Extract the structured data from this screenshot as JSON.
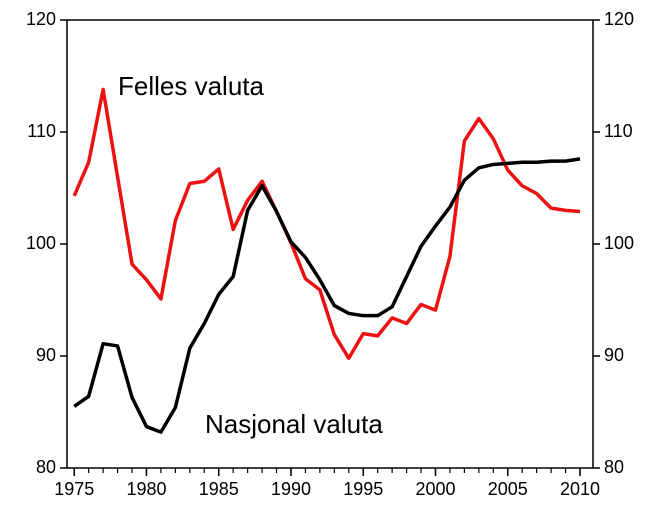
{
  "chart_data": {
    "type": "line",
    "x": [
      1975,
      1976,
      1977,
      1978,
      1979,
      1980,
      1981,
      1982,
      1983,
      1984,
      1985,
      1986,
      1987,
      1988,
      1989,
      1990,
      1991,
      1992,
      1993,
      1994,
      1995,
      1996,
      1997,
      1998,
      1999,
      2000,
      2001,
      2002,
      2003,
      2004,
      2005,
      2006,
      2007,
      2008,
      2009,
      2010
    ],
    "series": [
      {
        "name": "Felles valuta",
        "color": "#ee1111",
        "values": [
          104.3,
          107.3,
          113.8,
          106,
          98.2,
          96.8,
          95.1,
          102.1,
          105.4,
          105.6,
          106.7,
          101.3,
          103.9,
          105.6,
          102.9,
          100.1,
          96.9,
          95.9,
          91.9,
          89.8,
          92.0,
          91.8,
          93.4,
          92.9,
          94.6,
          94.1,
          98.9,
          109.2,
          111.2,
          109.4,
          106.6,
          105.2,
          104.5,
          103.2,
          103.0,
          102.9
        ]
      },
      {
        "name": "Nasjonal valuta",
        "color": "#000000",
        "values": [
          85.5,
          86.4,
          91.1,
          90.9,
          86.3,
          83.7,
          83.2,
          85.4,
          90.7,
          92.9,
          95.5,
          97.1,
          103.0,
          105.2,
          102.9,
          100.2,
          98.8,
          96.8,
          94.5,
          93.8,
          93.6,
          93.6,
          94.4,
          97.1,
          99.8,
          101.6,
          103.3,
          105.7,
          106.8,
          107.1,
          107.2,
          107.3,
          107.3,
          107.4,
          107.4,
          107.6
        ]
      }
    ],
    "xlim": [
      1974.5,
      2010.9
    ],
    "xticks": [
      1975,
      1980,
      1985,
      1990,
      1995,
      2000,
      2005,
      2010
    ],
    "xminorticks": [
      1975,
      1976,
      1977,
      1978,
      1979,
      1980,
      1981,
      1982,
      1983,
      1984,
      1985,
      1986,
      1987,
      1988,
      1989,
      1990,
      1991,
      1992,
      1993,
      1994,
      1995,
      1996,
      1997,
      1998,
      1999,
      2000,
      2001,
      2002,
      2003,
      2004,
      2005,
      2006,
      2007,
      2008,
      2009,
      2010
    ],
    "ylim": [
      80,
      120
    ],
    "yticks": [
      80,
      90,
      100,
      110,
      120
    ],
    "y2lim": [
      80,
      120
    ],
    "y2ticks": [
      80,
      90,
      100,
      110,
      120
    ],
    "grid": false
  }
}
